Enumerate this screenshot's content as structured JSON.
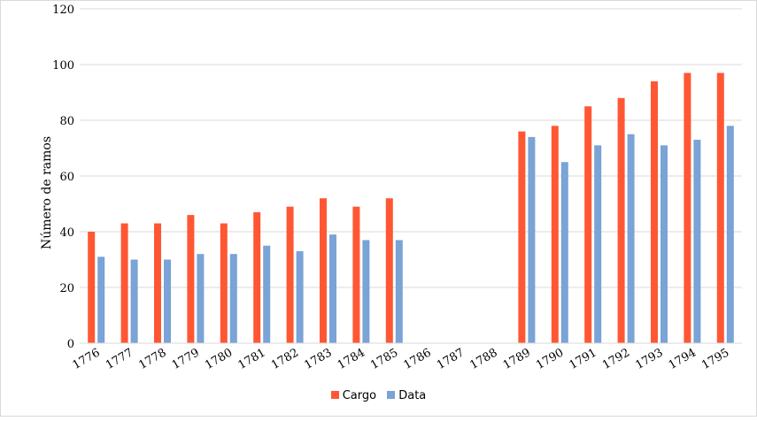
{
  "chart_data": {
    "type": "bar",
    "title": "",
    "xlabel": "",
    "ylabel": "Número de ramos",
    "ylim": [
      0,
      120
    ],
    "yticks": [
      0,
      20,
      40,
      60,
      80,
      100,
      120
    ],
    "grid": true,
    "legend_position": "bottom",
    "categories": [
      "1776",
      "1777",
      "1778",
      "1779",
      "1780",
      "1781",
      "1782",
      "1783",
      "1784",
      "1785",
      "1786",
      "1787",
      "1788",
      "1789",
      "1790",
      "1791",
      "1792",
      "1793",
      "1794",
      "1795"
    ],
    "series": [
      {
        "name": "Cargo",
        "color": "#ff5733",
        "values": [
          40,
          43,
          43,
          46,
          43,
          47,
          49,
          52,
          49,
          52,
          null,
          null,
          null,
          76,
          78,
          85,
          88,
          94,
          97,
          97
        ]
      },
      {
        "name": "Data",
        "color": "#7aa3d6",
        "values": [
          31,
          30,
          30,
          32,
          32,
          35,
          33,
          39,
          37,
          37,
          null,
          null,
          null,
          74,
          65,
          71,
          75,
          71,
          73,
          78
        ]
      }
    ]
  }
}
